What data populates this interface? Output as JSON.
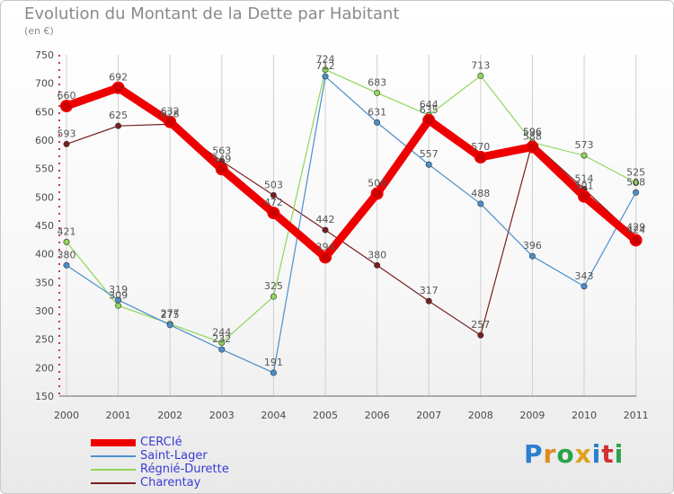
{
  "chart_data": {
    "type": "line",
    "title": "Evolution du Montant de la Dette par Habitant",
    "subtitle": "(en €)",
    "categories": [
      "2000",
      "2001",
      "2002",
      "2003",
      "2004",
      "2005",
      "2006",
      "2007",
      "2008",
      "2009",
      "2010",
      "2011"
    ],
    "ylim": [
      150,
      750
    ],
    "yticks": [
      150,
      200,
      250,
      300,
      350,
      400,
      450,
      500,
      550,
      600,
      650,
      700,
      750
    ],
    "grid": "vertical lines at each year",
    "legend_position": "bottom-left",
    "series": [
      {
        "name": "CERCIé",
        "color": "#ee0000",
        "values": [
          660,
          692,
          632,
          549,
          472,
          394,
          506,
          635,
          570,
          588,
          501,
          424
        ]
      },
      {
        "name": "Saint-Lager",
        "color": "#4a8fcb",
        "values": [
          380,
          319,
          275,
          232,
          191,
          712,
          631,
          557,
          488,
          396,
          343,
          508
        ]
      },
      {
        "name": "Régnié-Durette",
        "color": "#8fd65a",
        "values": [
          421,
          309,
          277,
          244,
          325,
          724,
          683,
          644,
          713,
          596,
          573,
          525
        ]
      },
      {
        "name": "Charentay",
        "color": "#7a1f1f",
        "values": [
          593,
          625,
          628,
          563,
          503,
          442,
          380,
          317,
          257,
          596,
          514,
          429
        ]
      }
    ]
  },
  "brand": {
    "label": "Proxiti",
    "letters": [
      "P",
      "r",
      "o",
      "x",
      "i",
      "t",
      "i"
    ],
    "colors": [
      "#2a7fd0",
      "#e08a20",
      "#2aa34a",
      "#e0a020",
      "#2a7fd0",
      "#d03030",
      "#2aa34a"
    ]
  }
}
